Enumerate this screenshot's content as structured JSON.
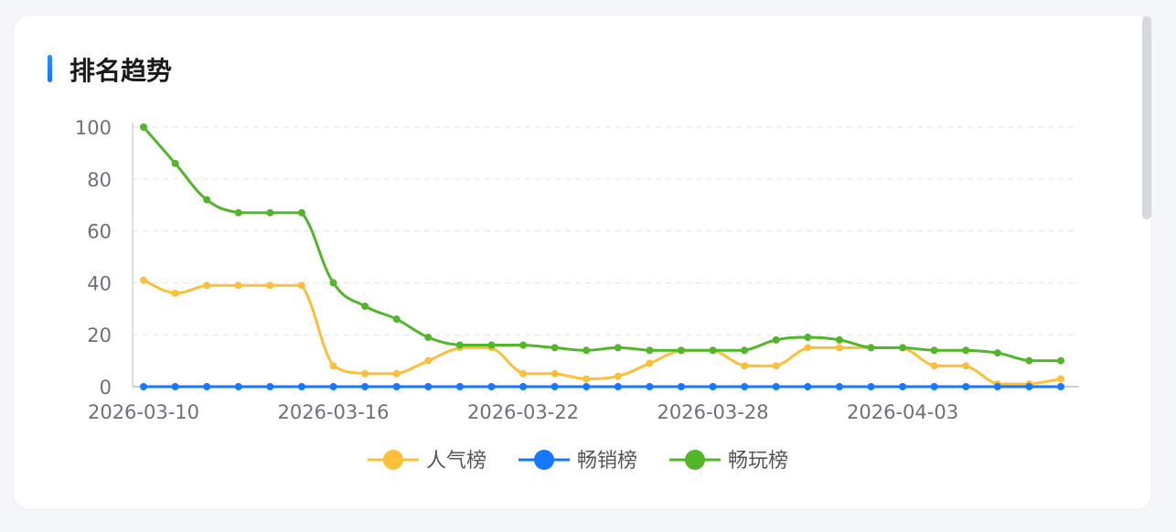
{
  "header": {
    "title": "排名趋势"
  },
  "chart_data": {
    "type": "line",
    "title": "",
    "xlabel": "",
    "ylabel": "",
    "ylim": [
      0,
      100
    ],
    "yticks": [
      0,
      20,
      40,
      60,
      80,
      100
    ],
    "grid": true,
    "legend_position": "bottom",
    "x": [
      "2026-03-10",
      "2026-03-11",
      "2026-03-12",
      "2026-03-13",
      "2026-03-14",
      "2026-03-15",
      "2026-03-16",
      "2026-03-17",
      "2026-03-18",
      "2026-03-19",
      "2026-03-20",
      "2026-03-21",
      "2026-03-22",
      "2026-03-23",
      "2026-03-24",
      "2026-03-25",
      "2026-03-26",
      "2026-03-27",
      "2026-03-28",
      "2026-03-29",
      "2026-03-30",
      "2026-03-31",
      "2026-04-01",
      "2026-04-02",
      "2026-04-03",
      "2026-04-04",
      "2026-04-05",
      "2026-04-06",
      "2026-04-07",
      "2026-04-08"
    ],
    "xtick_labels": [
      "2026-03-10",
      "2026-03-16",
      "2026-03-22",
      "2026-03-28",
      "2026-04-03"
    ],
    "series": [
      {
        "name": "人气榜",
        "color": "#fbbf3a",
        "values": [
          41,
          36,
          39,
          39,
          39,
          39,
          8,
          5,
          5,
          10,
          15,
          15,
          5,
          5,
          3,
          4,
          9,
          14,
          14,
          8,
          8,
          15,
          15,
          15,
          15,
          8,
          8,
          1,
          1,
          3
        ]
      },
      {
        "name": "畅销榜",
        "color": "#1677ff",
        "values": [
          0,
          0,
          0,
          0,
          0,
          0,
          0,
          0,
          0,
          0,
          0,
          0,
          0,
          0,
          0,
          0,
          0,
          0,
          0,
          0,
          0,
          0,
          0,
          0,
          0,
          0,
          0,
          0,
          0,
          0
        ]
      },
      {
        "name": "畅玩榜",
        "color": "#52b52a",
        "values": [
          100,
          86,
          72,
          67,
          67,
          67,
          40,
          31,
          26,
          19,
          16,
          16,
          16,
          15,
          14,
          15,
          14,
          14,
          14,
          14,
          18,
          19,
          18,
          15,
          15,
          14,
          14,
          13,
          10,
          10
        ]
      }
    ]
  }
}
